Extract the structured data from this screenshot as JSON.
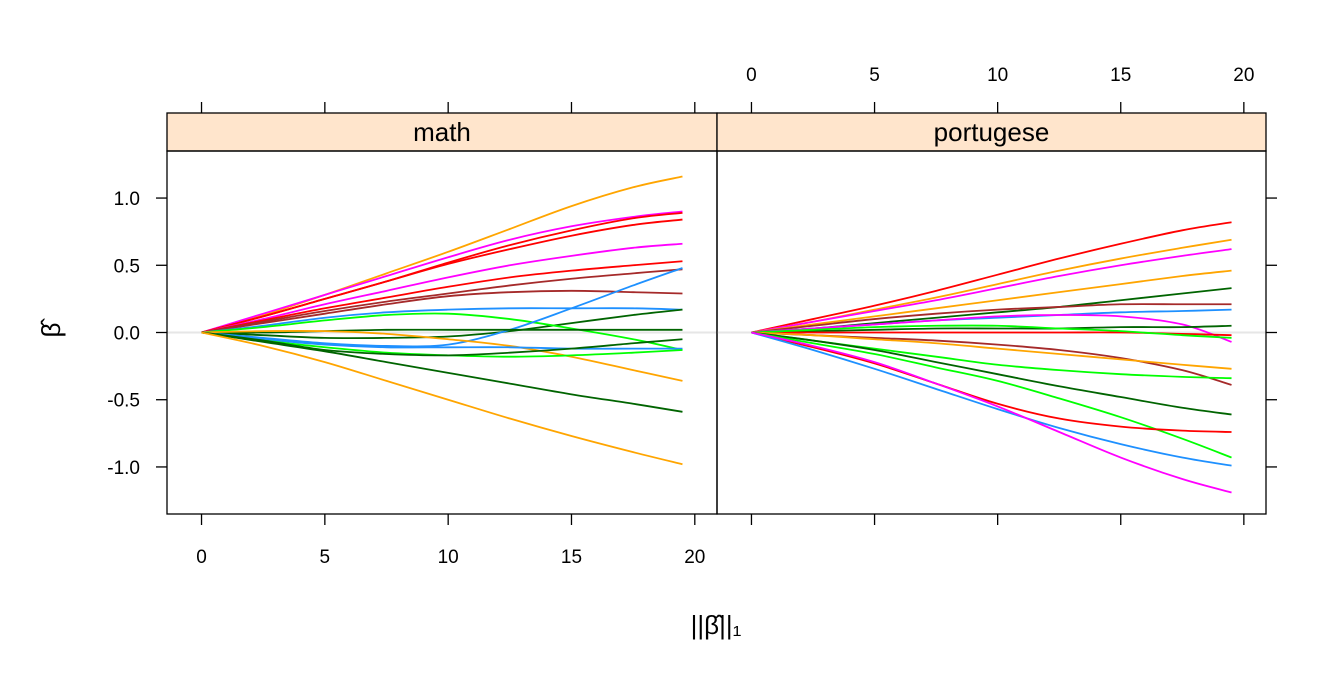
{
  "chart_data": {
    "type": "line",
    "layout": "two lattice panels side by side, shared x and y scales",
    "xlabel": "||β̂||₁",
    "ylabel": "β̂",
    "xlim": [
      -1.4,
      20.9
    ],
    "ylim": [
      -1.35,
      1.35
    ],
    "x_ticks": [
      0,
      5,
      10,
      15,
      20
    ],
    "y_ticks": [
      1.0,
      0.5,
      0.0,
      -0.5,
      -1.0
    ],
    "y_tick_labels": [
      "1.0",
      "0.5",
      "0.0",
      "-0.5",
      "-1.0"
    ],
    "strip_color": "#ffe5cc",
    "reference_line_y": 0,
    "x_sample_points": [
      0,
      2.5,
      5,
      7.5,
      10,
      12.5,
      15,
      17.5,
      19.5
    ],
    "panels": [
      {
        "title": "math",
        "series": [
          {
            "color": "#ffa500",
            "values": [
              0,
              0.13,
              0.28,
              0.44,
              0.6,
              0.77,
              0.94,
              1.08,
              1.16
            ]
          },
          {
            "color": "#ff00ff",
            "values": [
              0,
              0.14,
              0.28,
              0.42,
              0.56,
              0.69,
              0.79,
              0.86,
              0.9
            ]
          },
          {
            "color": "#ff0000",
            "values": [
              0,
              0.12,
              0.25,
              0.38,
              0.52,
              0.65,
              0.76,
              0.85,
              0.89
            ]
          },
          {
            "color": "#ff0000",
            "values": [
              0,
              0.12,
              0.25,
              0.38,
              0.51,
              0.62,
              0.72,
              0.8,
              0.84
            ]
          },
          {
            "color": "#ff00ff",
            "values": [
              0,
              0.1,
              0.21,
              0.31,
              0.41,
              0.5,
              0.57,
              0.63,
              0.66
            ]
          },
          {
            "color": "#ff0000",
            "values": [
              0,
              0.09,
              0.18,
              0.26,
              0.34,
              0.41,
              0.46,
              0.5,
              0.53
            ]
          },
          {
            "color": "#a52a2a",
            "values": [
              0,
              0.08,
              0.16,
              0.23,
              0.29,
              0.35,
              0.4,
              0.44,
              0.47
            ]
          },
          {
            "color": "#a52a2a",
            "values": [
              0,
              0.07,
              0.14,
              0.21,
              0.27,
              0.3,
              0.31,
              0.3,
              0.29
            ]
          },
          {
            "color": "#1e90ff",
            "values": [
              0,
              0.05,
              0.11,
              0.15,
              0.17,
              0.18,
              0.18,
              0.18,
              0.17
            ]
          },
          {
            "color": "#006400",
            "values": [
              0,
              -0.02,
              -0.04,
              -0.04,
              -0.03,
              0.01,
              0.07,
              0.13,
              0.17
            ]
          },
          {
            "color": "#00ff00",
            "values": [
              0,
              0.04,
              0.09,
              0.13,
              0.14,
              0.1,
              0.03,
              -0.05,
              -0.13
            ]
          },
          {
            "color": "#1e90ff",
            "values": [
              0,
              -0.04,
              -0.08,
              -0.1,
              -0.09,
              0.02,
              0.18,
              0.35,
              0.48
            ]
          },
          {
            "color": "#006400",
            "values": [
              0,
              0.0,
              0.01,
              0.02,
              0.02,
              0.02,
              0.02,
              0.02,
              0.02
            ]
          },
          {
            "color": "#ffa500",
            "values": [
              0,
              0.01,
              0.01,
              -0.01,
              -0.05,
              -0.1,
              -0.18,
              -0.28,
              -0.36
            ]
          },
          {
            "color": "#1e90ff",
            "values": [
              0,
              -0.05,
              -0.09,
              -0.11,
              -0.11,
              -0.11,
              -0.12,
              -0.12,
              -0.12
            ]
          },
          {
            "color": "#00ff00",
            "values": [
              0,
              -0.06,
              -0.11,
              -0.15,
              -0.17,
              -0.18,
              -0.17,
              -0.15,
              -0.13
            ]
          },
          {
            "color": "#006400",
            "values": [
              0,
              -0.06,
              -0.13,
              -0.16,
              -0.17,
              -0.15,
              -0.12,
              -0.08,
              -0.05
            ]
          },
          {
            "color": "#006400",
            "values": [
              0,
              -0.07,
              -0.14,
              -0.22,
              -0.3,
              -0.38,
              -0.46,
              -0.53,
              -0.59
            ]
          },
          {
            "color": "#ffa500",
            "values": [
              0,
              -0.1,
              -0.22,
              -0.36,
              -0.5,
              -0.64,
              -0.77,
              -0.89,
              -0.98
            ]
          }
        ]
      },
      {
        "title": "portugese",
        "series": [
          {
            "color": "#ff0000",
            "values": [
              0,
              0.1,
              0.2,
              0.31,
              0.43,
              0.55,
              0.66,
              0.76,
              0.82
            ]
          },
          {
            "color": "#ffa500",
            "values": [
              0,
              0.08,
              0.17,
              0.26,
              0.36,
              0.46,
              0.55,
              0.63,
              0.69
            ]
          },
          {
            "color": "#ff00ff",
            "values": [
              0,
              0.08,
              0.16,
              0.24,
              0.33,
              0.42,
              0.5,
              0.57,
              0.62
            ]
          },
          {
            "color": "#ffa500",
            "values": [
              0,
              0.06,
              0.12,
              0.18,
              0.24,
              0.3,
              0.36,
              0.42,
              0.46
            ]
          },
          {
            "color": "#006400",
            "values": [
              0,
              0.03,
              0.07,
              0.11,
              0.15,
              0.19,
              0.24,
              0.29,
              0.33
            ]
          },
          {
            "color": "#a52a2a",
            "values": [
              0,
              0.05,
              0.1,
              0.14,
              0.17,
              0.19,
              0.21,
              0.21,
              0.21
            ]
          },
          {
            "color": "#1e90ff",
            "values": [
              0,
              0.03,
              0.06,
              0.09,
              0.11,
              0.13,
              0.15,
              0.16,
              0.17
            ]
          },
          {
            "color": "#ff00ff",
            "values": [
              0,
              0.03,
              0.06,
              0.09,
              0.12,
              0.13,
              0.12,
              0.06,
              -0.07
            ]
          },
          {
            "color": "#006400",
            "values": [
              0,
              0.01,
              0.02,
              0.03,
              0.03,
              0.03,
              0.04,
              0.04,
              0.05
            ]
          },
          {
            "color": "#ff0000",
            "values": [
              0,
              0.0,
              0.0,
              0.0,
              0.0,
              0.0,
              0.0,
              -0.01,
              -0.02
            ]
          },
          {
            "color": "#00ff00",
            "values": [
              0,
              0.02,
              0.04,
              0.05,
              0.05,
              0.03,
              0.01,
              -0.02,
              -0.04
            ]
          },
          {
            "color": "#a52a2a",
            "values": [
              0,
              -0.02,
              -0.04,
              -0.06,
              -0.09,
              -0.13,
              -0.19,
              -0.28,
              -0.39
            ]
          },
          {
            "color": "#ffa500",
            "values": [
              0,
              -0.02,
              -0.05,
              -0.08,
              -0.12,
              -0.16,
              -0.2,
              -0.24,
              -0.27
            ]
          },
          {
            "color": "#00ff00",
            "values": [
              0,
              -0.06,
              -0.12,
              -0.18,
              -0.24,
              -0.28,
              -0.31,
              -0.33,
              -0.34
            ]
          },
          {
            "color": "#006400",
            "values": [
              0,
              -0.06,
              -0.13,
              -0.22,
              -0.31,
              -0.4,
              -0.48,
              -0.56,
              -0.61
            ]
          },
          {
            "color": "#00ff00",
            "values": [
              0,
              -0.08,
              -0.16,
              -0.26,
              -0.36,
              -0.49,
              -0.63,
              -0.79,
              -0.93
            ]
          },
          {
            "color": "#ff0000",
            "values": [
              0,
              -0.11,
              -0.23,
              -0.38,
              -0.53,
              -0.64,
              -0.7,
              -0.73,
              -0.74
            ]
          },
          {
            "color": "#1e90ff",
            "values": [
              0,
              -0.13,
              -0.27,
              -0.42,
              -0.57,
              -0.71,
              -0.83,
              -0.93,
              -0.99
            ]
          },
          {
            "color": "#ff00ff",
            "values": [
              0,
              -0.1,
              -0.22,
              -0.38,
              -0.55,
              -0.74,
              -0.93,
              -1.09,
              -1.19
            ]
          }
        ]
      }
    ]
  }
}
